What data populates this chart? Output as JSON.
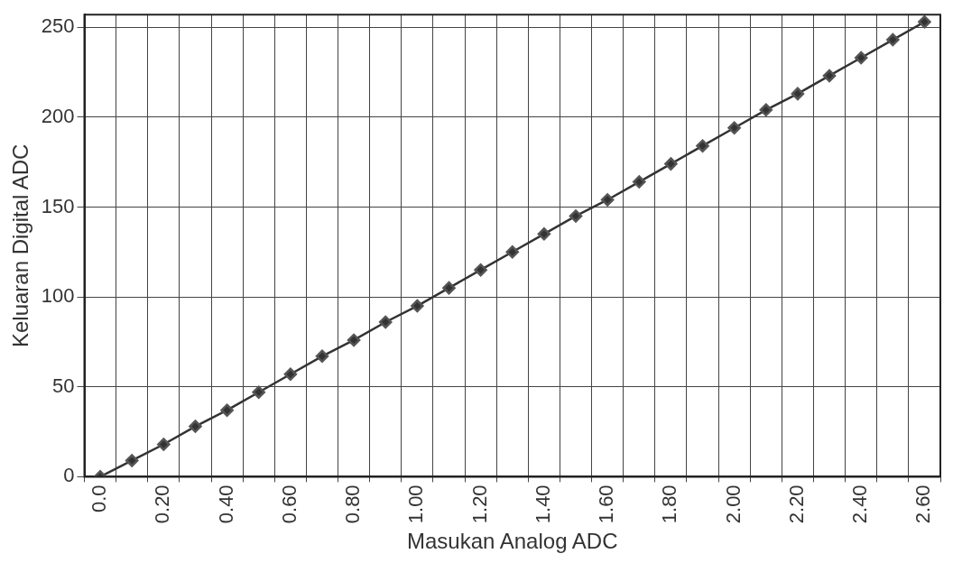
{
  "chart_data": {
    "type": "line",
    "xlabel": "Masukan Analog ADC",
    "ylabel": "Keluaran Digital ADC",
    "categories": [
      "0.0",
      null,
      "0.20",
      null,
      "0.40",
      null,
      "0.60",
      null,
      "0.80",
      null,
      "1.00",
      null,
      "1.20",
      null,
      "1.40",
      null,
      "1.60",
      null,
      "1.80",
      null,
      "2.00",
      null,
      "2.20",
      null,
      "2.40",
      null,
      "2.60"
    ],
    "series": [
      {
        "color": "#333333",
        "values": [
          0,
          9,
          18,
          28,
          37,
          47,
          57,
          67,
          76,
          86,
          95,
          105,
          115,
          125,
          135,
          145,
          154,
          164,
          174,
          184,
          194,
          204,
          213,
          223,
          233,
          243,
          253
        ]
      }
    ],
    "ylim": [
      0,
      257
    ],
    "yticks": [
      0,
      50,
      100,
      150,
      200,
      250
    ],
    "grid": true,
    "legend": false,
    "marker": "diamond",
    "line_style": "solid"
  }
}
